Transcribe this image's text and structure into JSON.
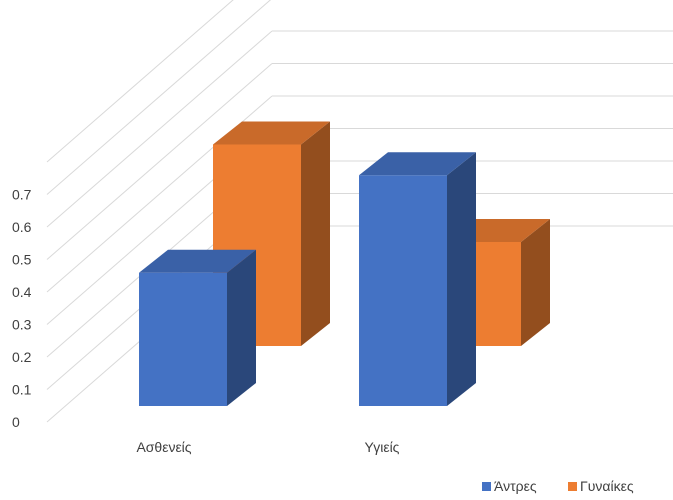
{
  "chart_data": {
    "type": "bar",
    "style": "3d-clustered-column",
    "title": "",
    "xlabel": "",
    "ylabel": "",
    "categories": [
      "Ασθενείς",
      "Υγιείς"
    ],
    "series": [
      {
        "name": "Άντρες",
        "color": "#4472C4",
        "values": [
          0.41,
          0.71
        ]
      },
      {
        "name": "Γυναίκες",
        "color": "#ED7D31",
        "values": [
          0.62,
          0.32
        ]
      }
    ],
    "ylim": [
      0,
      0.7
    ],
    "yticks": [
      "0",
      "0.1",
      "0.2",
      "0.3",
      "0.4",
      "0.5",
      "0.6",
      "0.7"
    ],
    "grid": true,
    "legend_position": "bottom-right"
  }
}
